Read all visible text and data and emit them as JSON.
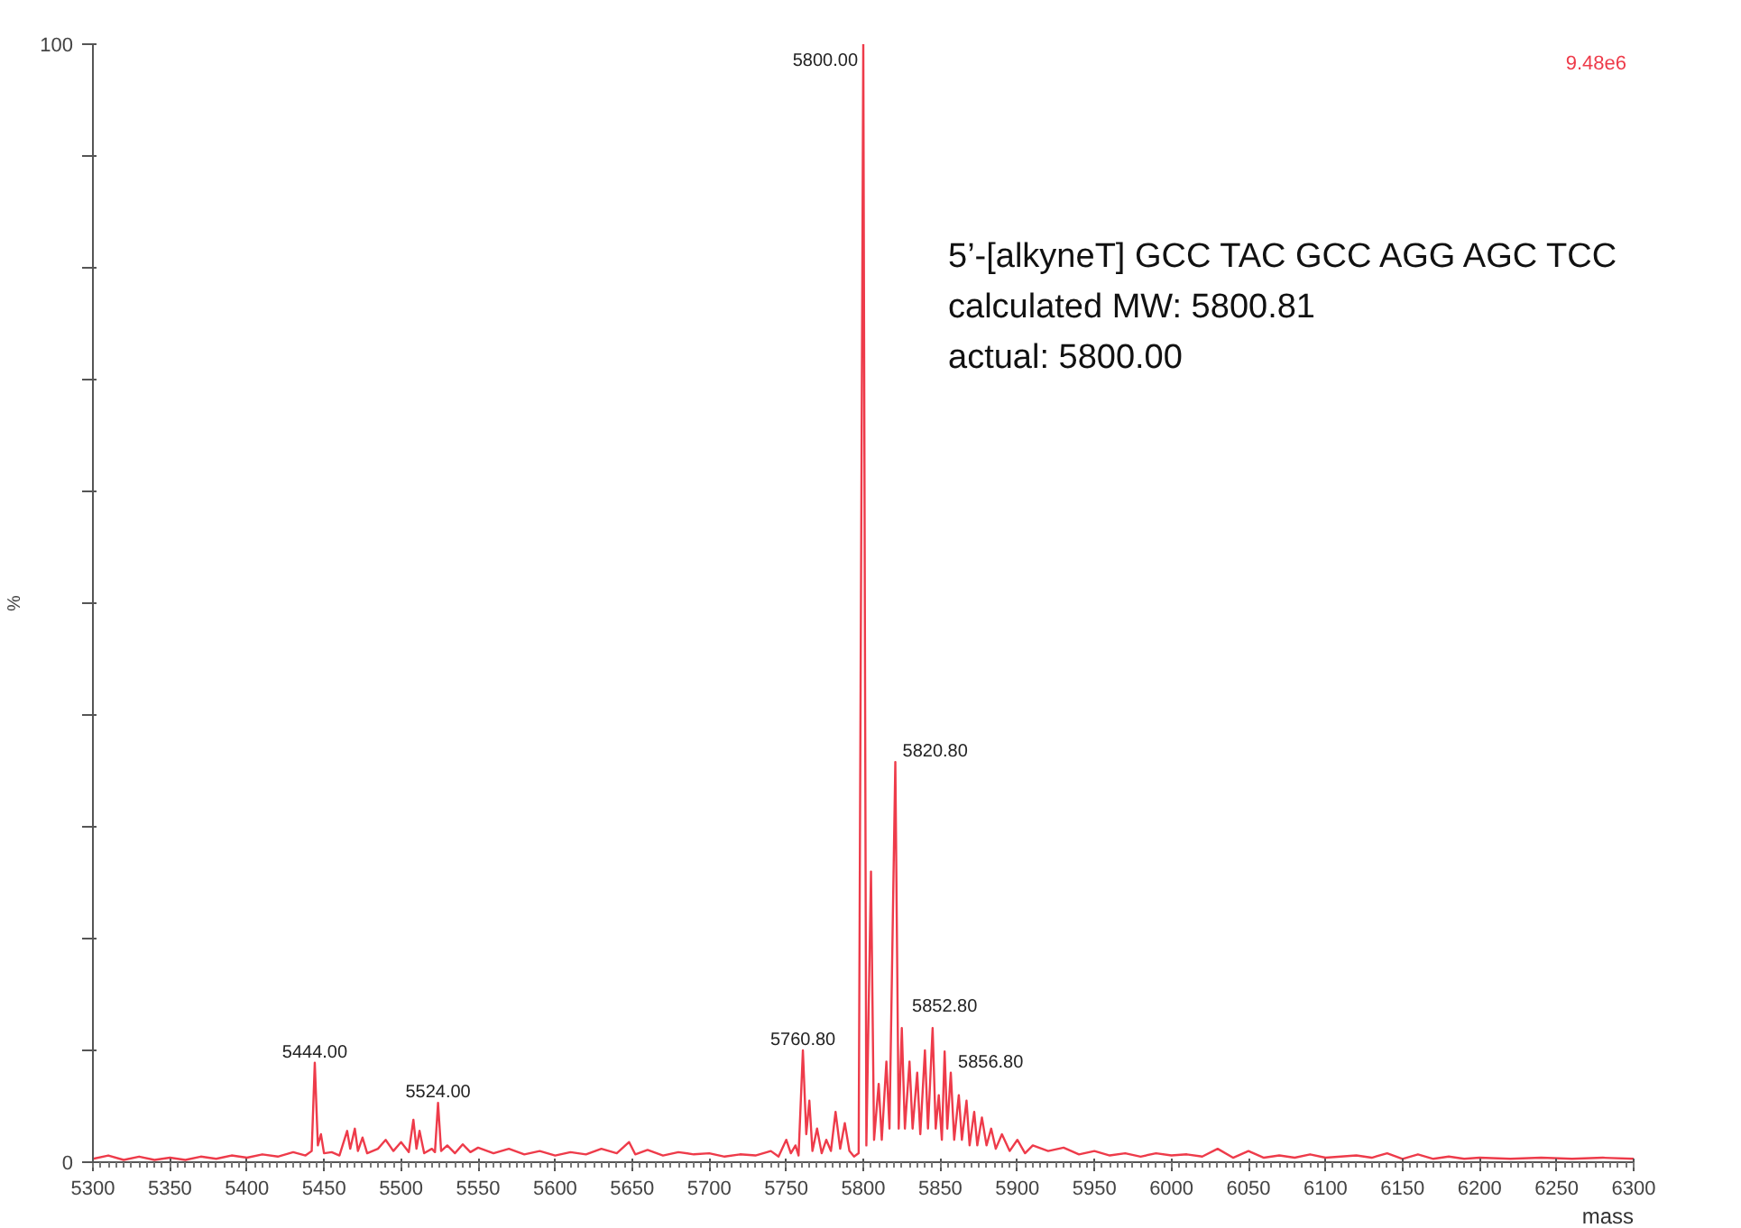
{
  "chart_data": {
    "type": "line",
    "xlabel": "mass",
    "ylabel": "%",
    "xlim": [
      5300,
      6300
    ],
    "ylim": [
      0,
      100
    ],
    "xticks": [
      5300,
      5350,
      5400,
      5450,
      5500,
      5550,
      5600,
      5650,
      5700,
      5750,
      5800,
      5850,
      5900,
      5950,
      6000,
      6050,
      6100,
      6150,
      6200,
      6250,
      6300
    ],
    "yticks": [
      0,
      {
        "value": 10,
        "label": null
      },
      {
        "value": 20,
        "label": null
      },
      {
        "value": 30,
        "label": null
      },
      {
        "value": 40,
        "label": null
      },
      {
        "value": 50,
        "label": null
      },
      {
        "value": 60,
        "label": null
      },
      {
        "value": 70,
        "label": null
      },
      {
        "value": 80,
        "label": null
      },
      {
        "value": 90,
        "label": null
      },
      100
    ],
    "grid": false,
    "marker": "none",
    "line_style": "solid",
    "annotations": [
      "9.48e6",
      "5’-[alkyneT] GCC TAC GCC AGG AGC TCC",
      "calculated MW: 5800.81",
      "actual: 5800.00",
      {
        "text": "5800.00",
        "x": 5800,
        "y": 100
      },
      {
        "text": "5820.80",
        "x": 5820.8,
        "y": 35.8
      },
      {
        "text": "5760.80",
        "x": 5760.8,
        "y": 10.0
      },
      {
        "text": "5444.00",
        "x": 5444,
        "y": 8.9
      },
      {
        "text": "5524.00",
        "x": 5524,
        "y": 5.3
      },
      {
        "text": "5852.80",
        "x": 5852.8,
        "y": 9.9
      },
      {
        "text": "5856.80",
        "x": 5856.8,
        "y": 8.0
      }
    ],
    "series": [
      {
        "color": "#ee3b4a",
        "x": [
          5300,
          5310,
          5320,
          5330,
          5340,
          5350,
          5360,
          5370,
          5380,
          5390,
          5400,
          5410,
          5420,
          5430,
          5438,
          5442,
          5444,
          5446,
          5448,
          5450,
          5455,
          5460,
          5465,
          5467,
          5470,
          5472,
          5475,
          5478,
          5485,
          5490,
          5495,
          5500,
          5505,
          5508,
          5510,
          5512,
          5515,
          5520,
          5522,
          5524,
          5526,
          5530,
          5535,
          5540,
          5545,
          5550,
          5560,
          5570,
          5580,
          5590,
          5600,
          5610,
          5620,
          5630,
          5640,
          5648,
          5652,
          5660,
          5670,
          5680,
          5690,
          5700,
          5710,
          5720,
          5730,
          5740,
          5745,
          5750,
          5753,
          5756,
          5758,
          5760.8,
          5763,
          5765,
          5767,
          5770,
          5773,
          5776,
          5779,
          5782,
          5785,
          5788,
          5791,
          5794,
          5797,
          5800,
          5802,
          5805,
          5807,
          5810,
          5812,
          5815,
          5817,
          5820.8,
          5823,
          5825,
          5827,
          5830,
          5832,
          5835,
          5837,
          5840,
          5842,
          5845,
          5847,
          5849,
          5851,
          5852.8,
          5854.5,
          5856.8,
          5859,
          5862,
          5864,
          5867,
          5869,
          5872,
          5874,
          5877,
          5880,
          5883,
          5886,
          5890,
          5895,
          5900,
          5905,
          5910,
          5920,
          5930,
          5940,
          5950,
          5960,
          5970,
          5980,
          5990,
          6000,
          6010,
          6020,
          6030,
          6040,
          6050,
          6060,
          6070,
          6080,
          6090,
          6100,
          6110,
          6120,
          6130,
          6140,
          6150,
          6160,
          6170,
          6180,
          6190,
          6200,
          6220,
          6240,
          6260,
          6280,
          6300
        ],
        "values": [
          0.3,
          0.6,
          0.2,
          0.5,
          0.2,
          0.4,
          0.2,
          0.5,
          0.3,
          0.6,
          0.4,
          0.7,
          0.5,
          0.9,
          0.6,
          1.0,
          8.9,
          1.5,
          2.5,
          0.8,
          0.9,
          0.6,
          2.8,
          1.2,
          3.0,
          1.0,
          2.2,
          0.8,
          1.2,
          2.0,
          1.0,
          1.8,
          0.9,
          3.8,
          1.2,
          2.8,
          0.8,
          1.2,
          0.9,
          5.3,
          1.0,
          1.5,
          0.8,
          1.6,
          0.9,
          1.3,
          0.8,
          1.2,
          0.7,
          1.0,
          0.6,
          0.9,
          0.7,
          1.2,
          0.8,
          1.8,
          0.7,
          1.1,
          0.6,
          0.9,
          0.7,
          0.8,
          0.5,
          0.7,
          0.6,
          1.0,
          0.5,
          2.0,
          0.8,
          1.5,
          0.6,
          10.0,
          2.5,
          5.5,
          1.0,
          3.0,
          0.8,
          2.0,
          1.0,
          4.5,
          1.2,
          3.5,
          1.0,
          0.5,
          0.8,
          100,
          1.5,
          26,
          2,
          7,
          2,
          9,
          3,
          35.8,
          3,
          12,
          3,
          9,
          3,
          8,
          2.5,
          10,
          3,
          12,
          3,
          6,
          2,
          9.9,
          3,
          8.0,
          2,
          6,
          2,
          5.5,
          1.5,
          4.5,
          1.5,
          4,
          1.5,
          3,
          1.2,
          2.5,
          1.0,
          2.0,
          0.8,
          1.5,
          1.0,
          1.3,
          0.7,
          1.0,
          0.6,
          0.8,
          0.5,
          0.8,
          0.6,
          0.7,
          0.5,
          1.2,
          0.4,
          1.0,
          0.4,
          0.6,
          0.4,
          0.7,
          0.4,
          0.5,
          0.6,
          0.4,
          0.8,
          0.3,
          0.7,
          0.3,
          0.5,
          0.3,
          0.4,
          0.3,
          0.4,
          0.3,
          0.4,
          0.3
        ]
      }
    ]
  }
}
